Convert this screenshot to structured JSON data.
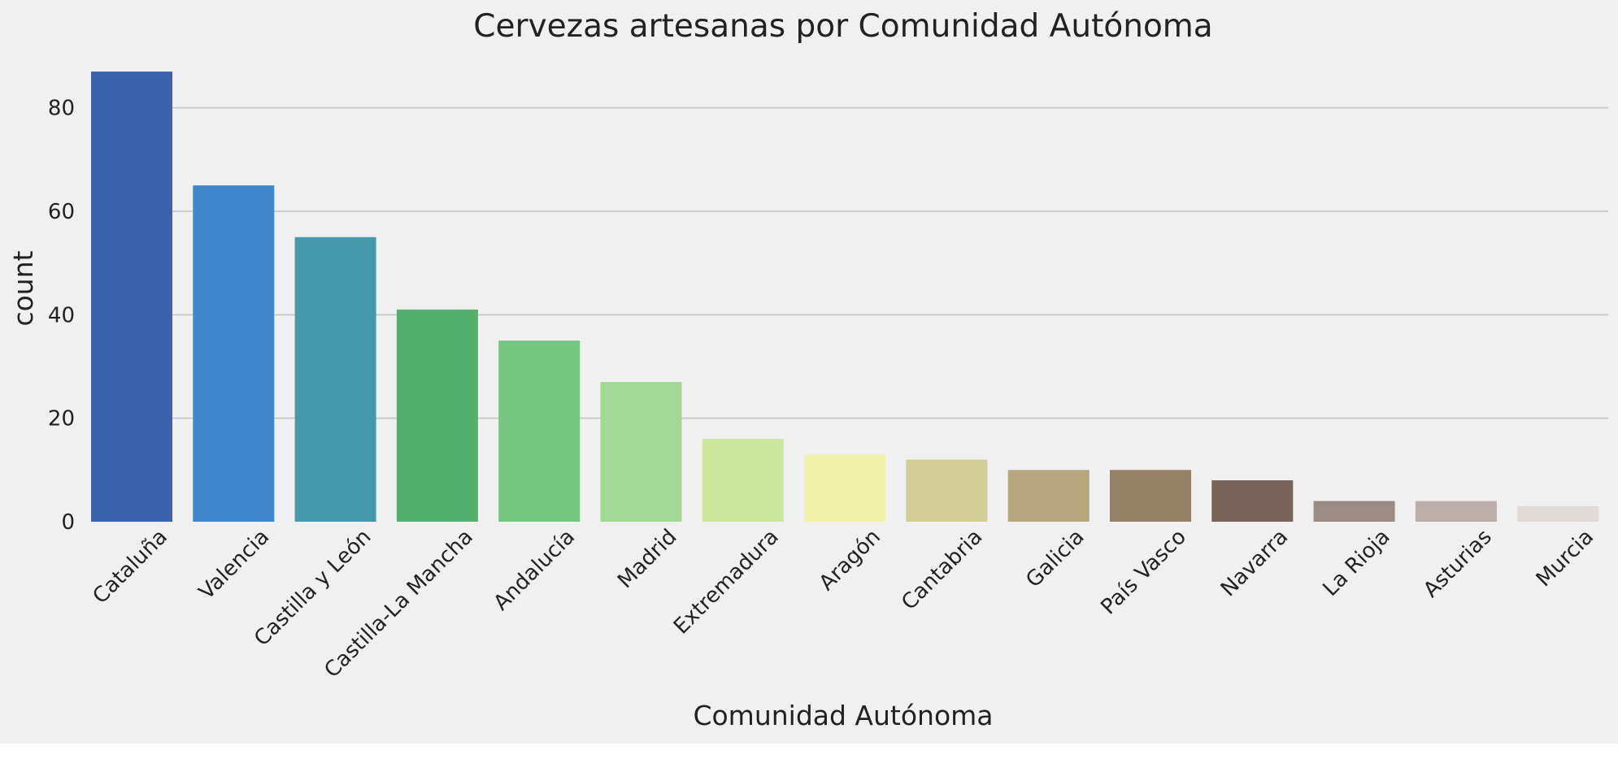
{
  "chart_data": {
    "type": "bar",
    "title": "Cervezas artesanas por Comunidad Autónoma",
    "xlabel": "Comunidad Autónoma",
    "ylabel": "count",
    "categories": [
      "Cataluña",
      "Valencia",
      "Castilla y León",
      "Castilla-La Mancha",
      "Andalucía",
      "Madrid",
      "Extremadura",
      "Aragón",
      "Cantabria",
      "Galicia",
      "País Vasco",
      "Navarra",
      "La Rioja",
      "Asturias",
      "Murcia"
    ],
    "values": [
      87,
      65,
      55,
      41,
      35,
      27,
      16,
      13,
      12,
      10,
      10,
      8,
      4,
      4,
      3
    ],
    "colors": [
      "#3a62ad",
      "#3f86cb",
      "#4699ab",
      "#53b06e",
      "#74c482",
      "#a1d893",
      "#cde69e",
      "#f2f1ac",
      "#d3cd96",
      "#b5a67f",
      "#958068",
      "#78625a",
      "#9c8b84",
      "#bcaea9",
      "#e0d9d6"
    ],
    "yticks": [
      0,
      20,
      40,
      60,
      80
    ],
    "ylim": [
      0,
      91
    ],
    "grid": "horizontal",
    "background": "#f0f0f0"
  }
}
